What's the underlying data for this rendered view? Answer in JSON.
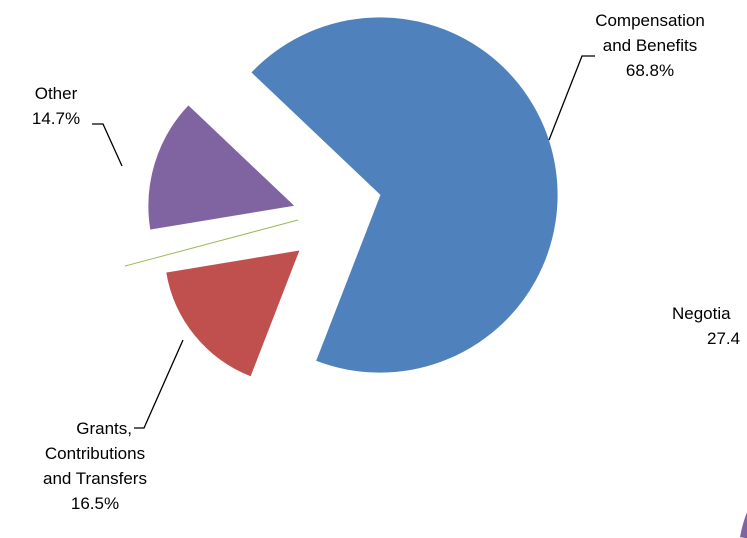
{
  "chart_data": [
    {
      "type": "pie",
      "title": "",
      "slices": [
        {
          "label_lines": [
            "Compensation",
            "and Benefits"
          ],
          "value_label": "68.8%",
          "value": 68.8,
          "color": "#4F81BD"
        },
        {
          "label_lines": [
            "Grants,",
            "Contributions",
            "and Transfers"
          ],
          "value_label": "16.5%",
          "value": 16.5,
          "color": "#C0504D"
        },
        {
          "label_lines": [
            "Other"
          ],
          "value_label": "14.7%",
          "value": 14.7,
          "color": "#8064A2"
        }
      ],
      "exploded": true,
      "legend": "none"
    },
    {
      "type": "pie",
      "title": "",
      "partially_visible": true,
      "slices": [
        {
          "label_lines": [
            "Negotia"
          ],
          "value_label": "27.4",
          "value": 27.4,
          "color": "#8064A2"
        }
      ]
    }
  ]
}
